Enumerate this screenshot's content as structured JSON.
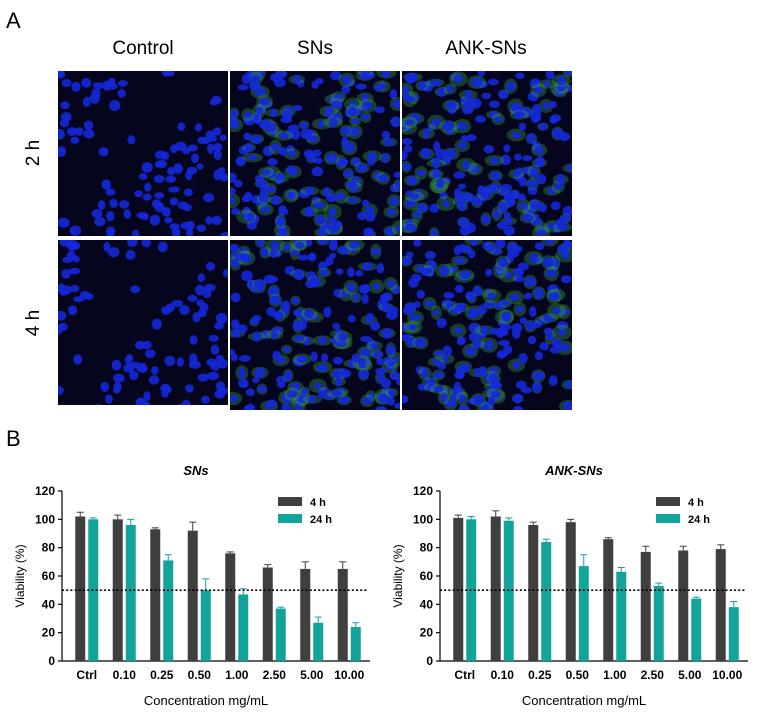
{
  "panel_a": {
    "letter": "A",
    "columns": [
      "Control",
      "SNs",
      "ANK-SNs"
    ],
    "rows": [
      "2 h",
      "4 h"
    ]
  },
  "panel_b": {
    "letter": "B"
  },
  "colors": {
    "series_4h": "#3f3f3f",
    "series_24h": "#12a39a",
    "nucleus": "#1428d8",
    "background_dark": "#05051e",
    "green_signal": "#3ca83a"
  },
  "chart_data": [
    {
      "type": "bar",
      "title": "SNs",
      "xlabel": "Concentration mg/mL",
      "ylabel": "Viability (%)",
      "ylim": [
        0,
        120
      ],
      "yticks": [
        0,
        20,
        40,
        60,
        80,
        100,
        120
      ],
      "reference_line": 50,
      "legend_position": "top-right",
      "categories": [
        "Ctrl",
        "0.10",
        "0.25",
        "0.50",
        "1.00",
        "2.50",
        "5.00",
        "10.00"
      ],
      "series": [
        {
          "name": "4 h",
          "values": [
            102,
            100,
            93,
            92,
            76,
            66,
            65,
            65
          ],
          "errors": [
            3,
            3,
            1,
            6,
            1,
            2,
            5,
            5
          ]
        },
        {
          "name": "24 h",
          "values": [
            100,
            96,
            71,
            50,
            47,
            37,
            27,
            24
          ],
          "errors": [
            1,
            4,
            4,
            8,
            4,
            1,
            4,
            3
          ]
        }
      ]
    },
    {
      "type": "bar",
      "title": "ANK-SNs",
      "xlabel": "Concentration mg/mL",
      "ylabel": "Viability (%)",
      "ylim": [
        0,
        120
      ],
      "yticks": [
        0,
        20,
        40,
        60,
        80,
        100,
        120
      ],
      "reference_line": 50,
      "legend_position": "top-right",
      "categories": [
        "Ctrl",
        "0.10",
        "0.25",
        "0.50",
        "1.00",
        "2.50",
        "5.00",
        "10.00"
      ],
      "series": [
        {
          "name": "4 h",
          "values": [
            101,
            102,
            96,
            98,
            86,
            77,
            78,
            79
          ],
          "errors": [
            2,
            4,
            2,
            2,
            1,
            4,
            3,
            3
          ]
        },
        {
          "name": "24 h",
          "values": [
            100,
            99,
            84,
            67,
            63,
            53,
            44,
            38
          ],
          "errors": [
            2,
            2,
            2,
            8,
            3,
            2,
            1,
            4
          ]
        }
      ]
    }
  ]
}
